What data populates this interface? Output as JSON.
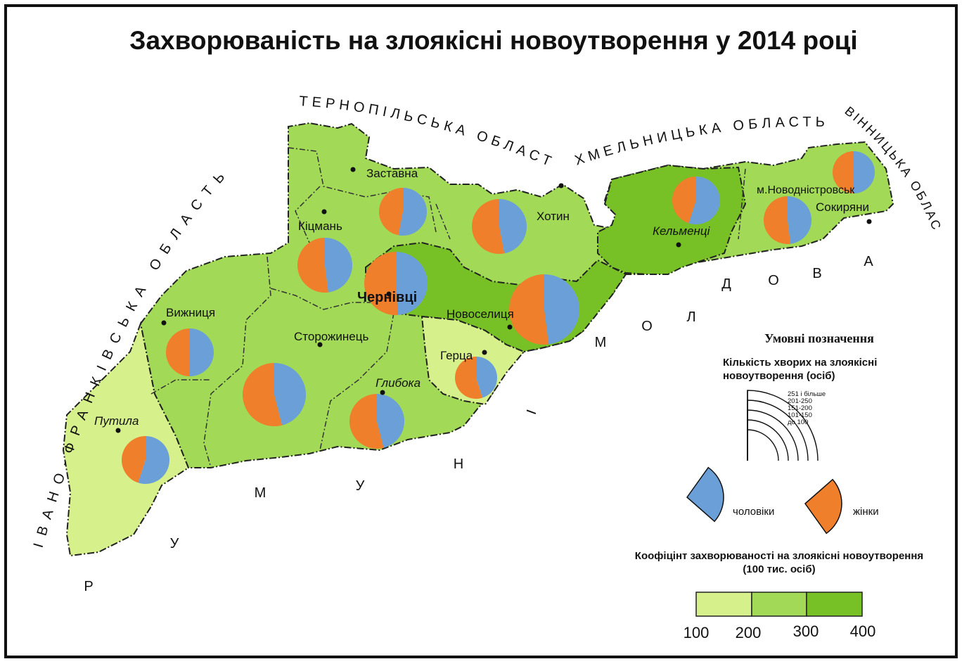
{
  "title": "Захворюваність на злоякісні новоутворення у 2014 році",
  "neighbors": {
    "ternopil": "ТЕРНОПІЛЬСЬКА ОБЛАСТЬ",
    "khmelnytskyi": "ХМЕЛЬНИЦЬКА ОБЛАСТЬ",
    "vinnytsia": "ВІННИЦЬКА ОБЛАСТЬ",
    "frankivsk": "ІВАНО-ФРАНКІВСЬКА ОБЛАСТЬ",
    "moldova": "МОЛДОВА",
    "romania": "РУМУНІЯ"
  },
  "colors": {
    "class_100_200": "#d6f08c",
    "class_200_300": "#a2d957",
    "class_300_400": "#77c126",
    "men": "#6b9fd8",
    "women": "#f07f2b"
  },
  "districts": [
    {
      "name": "Заставна",
      "italic": false,
      "class": "200-300",
      "women_share": 0.47,
      "size_class": "101-150"
    },
    {
      "name": "Кіцмань",
      "italic": false,
      "class": "200-300",
      "women_share": 0.52,
      "size_class": "151-200"
    },
    {
      "name": "Чернівці",
      "italic": false,
      "class": "300-400",
      "women_share": 0.51,
      "size_class": "201-250"
    },
    {
      "name": "Хотин",
      "italic": false,
      "class": "200-300",
      "women_share": 0.53,
      "size_class": "151-200"
    },
    {
      "name": "Кельменці",
      "italic": true,
      "class": "300-400",
      "women_share": 0.45,
      "size_class": "101-150"
    },
    {
      "name": "м.Новодністровськ",
      "italic": false,
      "class": "200-300",
      "women_share": 0.5,
      "size_class": "до 100"
    },
    {
      "name": "Сокиряни",
      "italic": false,
      "class": "200-300",
      "women_share": 0.52,
      "size_class": "101-150"
    },
    {
      "name": "Новоселиця",
      "italic": false,
      "class": "300-400",
      "women_share": 0.52,
      "size_class": "251 і більше"
    },
    {
      "name": "Вижниця",
      "italic": false,
      "class": "200-300",
      "women_share": 0.5,
      "size_class": "101-150"
    },
    {
      "name": "Сторожинець",
      "italic": false,
      "class": "200-300",
      "women_share": 0.54,
      "size_class": "201-250"
    },
    {
      "name": "Глибока",
      "italic": true,
      "class": "200-300",
      "women_share": 0.54,
      "size_class": "151-200"
    },
    {
      "name": "Герца",
      "italic": false,
      "class": "100-200",
      "women_share": 0.55,
      "size_class": "до 100"
    },
    {
      "name": "Путила",
      "italic": true,
      "class": "100-200",
      "women_share": 0.45,
      "size_class": "101-150"
    }
  ],
  "legend": {
    "title": "Умовні позначення",
    "count_title_line1": "Кількість хворих на злоякісні",
    "count_title_line2": "новоутворення (осіб)",
    "size_classes": [
      "251 і більше",
      "201-250",
      "151-200",
      "101-150",
      "до 100"
    ],
    "men_label": "чоловіки",
    "women_label": "жінки",
    "rate_title_line1": "Коофіцінт захворюваноcті на злоякісні новоутворення",
    "rate_title_line2": "(100 тис. осіб)",
    "rate_ticks": [
      "100",
      "200",
      "300",
      "400"
    ]
  }
}
